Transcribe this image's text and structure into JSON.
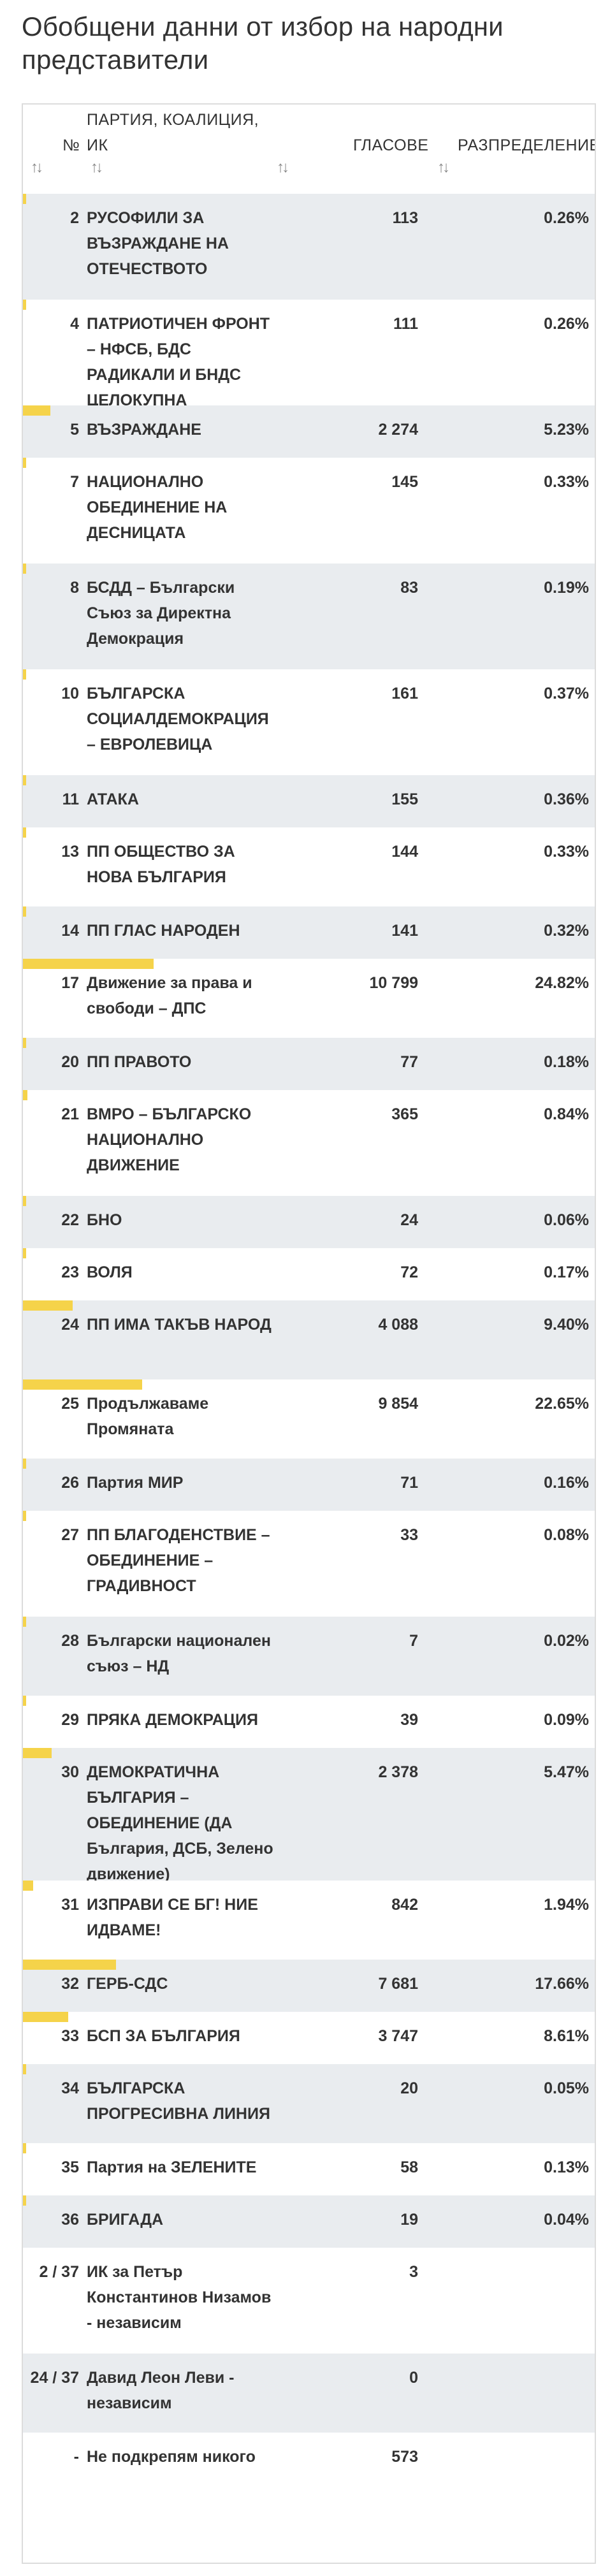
{
  "title": "Обобщени данни от избор на народни представители",
  "headers": {
    "num": "№",
    "party": "ПАРТИЯ, КОАЛИЦИЯ, ИК",
    "votes": "ГЛАСОВЕ",
    "dist": "РАЗПРЕДЕЛЕНИЕ",
    "sort_icon": "sort-arrows-icon"
  },
  "bar_color": "#f5d34a",
  "rows": [
    {
      "num": "2",
      "name": "РУСОФИЛИ ЗА ВЪЗРАЖДАНЕ НА ОТЕЧЕСТВОТО",
      "votes": "113",
      "pct": "0.26%",
      "share": 0.26
    },
    {
      "num": "4",
      "name": "ПАТРИОТИЧЕН ФРОНТ – НФСБ, БДС РАДИКАЛИ И БНДС ЦЕЛОКУПНА БЪЛГАРИЯ",
      "votes": "111",
      "pct": "0.26%",
      "share": 0.26
    },
    {
      "num": "5",
      "name": "ВЪЗРАЖДАНЕ",
      "votes": "2 274",
      "pct": "5.23%",
      "share": 5.23
    },
    {
      "num": "7",
      "name": "НАЦИОНАЛНО ОБЕДИНЕНИЕ НА ДЕСНИЦАТА",
      "votes": "145",
      "pct": "0.33%",
      "share": 0.33
    },
    {
      "num": "8",
      "name": "БСДД – Български Съюз за Директна Демокрация",
      "votes": "83",
      "pct": "0.19%",
      "share": 0.19
    },
    {
      "num": "10",
      "name": "БЪЛГАРСКА СОЦИАЛДЕМОКРАЦИЯ – ЕВРОЛЕВИЦА",
      "votes": "161",
      "pct": "0.37%",
      "share": 0.37
    },
    {
      "num": "11",
      "name": "АТАКА",
      "votes": "155",
      "pct": "0.36%",
      "share": 0.36
    },
    {
      "num": "13",
      "name": "ПП ОБЩЕСТВО ЗА НОВА БЪЛГАРИЯ",
      "votes": "144",
      "pct": "0.33%",
      "share": 0.33
    },
    {
      "num": "14",
      "name": "ПП ГЛАС НАРОДЕН",
      "votes": "141",
      "pct": "0.32%",
      "share": 0.32
    },
    {
      "num": "17",
      "name": "Движение за права и свободи – ДПС",
      "votes": "10 799",
      "pct": "24.82%",
      "share": 24.82
    },
    {
      "num": "20",
      "name": "ПП ПРАВОТО",
      "votes": "77",
      "pct": "0.18%",
      "share": 0.18
    },
    {
      "num": "21",
      "name": "ВМРО – БЪЛГАРСКО НАЦИОНАЛНО ДВИЖЕНИЕ",
      "votes": "365",
      "pct": "0.84%",
      "share": 0.84
    },
    {
      "num": "22",
      "name": "БНО",
      "votes": "24",
      "pct": "0.06%",
      "share": 0.06
    },
    {
      "num": "23",
      "name": "ВОЛЯ",
      "votes": "72",
      "pct": "0.17%",
      "share": 0.17
    },
    {
      "num": "24",
      "name": "ПП ИМА ТАКЪВ НАРОД",
      "votes": "4 088",
      "pct": "9.40%",
      "share": 9.4
    },
    {
      "num": "25",
      "name": "Продължаваме Промяната",
      "votes": "9 854",
      "pct": "22.65%",
      "share": 22.65
    },
    {
      "num": "26",
      "name": "Партия МИР",
      "votes": "71",
      "pct": "0.16%",
      "share": 0.16
    },
    {
      "num": "27",
      "name": "ПП БЛАГОДЕНСТВИЕ – ОБЕДИНЕНИЕ – ГРАДИВНОСТ",
      "votes": "33",
      "pct": "0.08%",
      "share": 0.08
    },
    {
      "num": "28",
      "name": "Български национален съюз – НД",
      "votes": "7",
      "pct": "0.02%",
      "share": 0.02
    },
    {
      "num": "29",
      "name": "ПРЯКА ДЕМОКРАЦИЯ",
      "votes": "39",
      "pct": "0.09%",
      "share": 0.09
    },
    {
      "num": "30",
      "name": "ДЕМОКРАТИЧНА БЪЛГАРИЯ – ОБЕДИНЕНИЕ (ДА България, ДСБ, Зелено движение)",
      "votes": "2 378",
      "pct": "5.47%",
      "share": 5.47
    },
    {
      "num": "31",
      "name": "ИЗПРАВИ СЕ БГ! НИЕ ИДВАМЕ!",
      "votes": "842",
      "pct": "1.94%",
      "share": 1.94
    },
    {
      "num": "32",
      "name": "ГЕРБ-СДС",
      "votes": "7 681",
      "pct": "17.66%",
      "share": 17.66
    },
    {
      "num": "33",
      "name": "БСП ЗА БЪЛГАРИЯ",
      "votes": "3 747",
      "pct": "8.61%",
      "share": 8.61
    },
    {
      "num": "34",
      "name": "БЪЛГАРСКА ПРОГРЕСИВНА ЛИНИЯ",
      "votes": "20",
      "pct": "0.05%",
      "share": 0.05
    },
    {
      "num": "35",
      "name": "Партия на ЗЕЛЕНИТЕ",
      "votes": "58",
      "pct": "0.13%",
      "share": 0.13
    },
    {
      "num": "36",
      "name": "БРИГАДА",
      "votes": "19",
      "pct": "0.04%",
      "share": 0.04
    },
    {
      "num": "2 / 37",
      "name": "ИК за Петър Константинов Низамов - независим",
      "votes": "3",
      "pct": "",
      "share": 0
    },
    {
      "num": "24 / 37",
      "name": "Давид Леон Леви - независим",
      "votes": "0",
      "pct": "",
      "share": 0
    },
    {
      "num": "-",
      "name": "Не подкрепям никого",
      "votes": "573",
      "pct": "",
      "share": 0
    }
  ]
}
